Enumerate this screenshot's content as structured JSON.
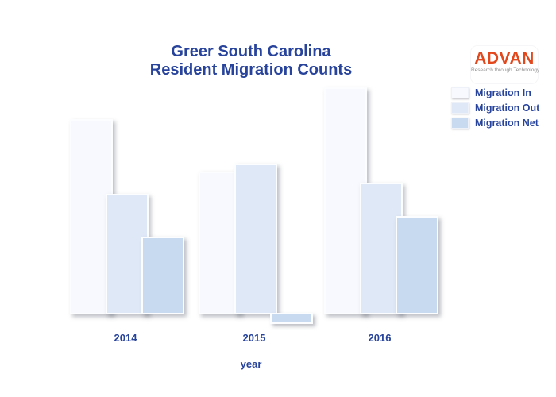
{
  "title": {
    "line1": "Greer South Carolina",
    "line2": "Resident Migration Counts",
    "color": "#27439b"
  },
  "logo": {
    "name": "ADVAN",
    "tagline": "Research through Technology",
    "name_color": "#e3481d",
    "tagline_color": "#8f8f8f"
  },
  "x_axis": {
    "label": "year",
    "tick_labels": [
      "2014",
      "2015",
      "2016"
    ]
  },
  "chart_data": {
    "type": "bar",
    "title": "Greer South Carolina Resident Migration Counts",
    "categories": [
      "2014",
      "2015",
      "2016"
    ],
    "series": [
      {
        "name": "Migration In",
        "color": "#f7f9fe",
        "values": [
          1200,
          875,
          1400
        ]
      },
      {
        "name": "Migration Out",
        "color": "#dee8f7",
        "values": [
          735,
          925,
          805
        ]
      },
      {
        "name": "Migration Net",
        "color": "#c7daf0",
        "values": [
          465,
          -50,
          595
        ]
      }
    ],
    "xlabel": "year",
    "ylabel": "",
    "ylim": [
      -100,
      1500
    ],
    "grid": false,
    "y_axis_visible": false,
    "legend_position": "top-right"
  }
}
